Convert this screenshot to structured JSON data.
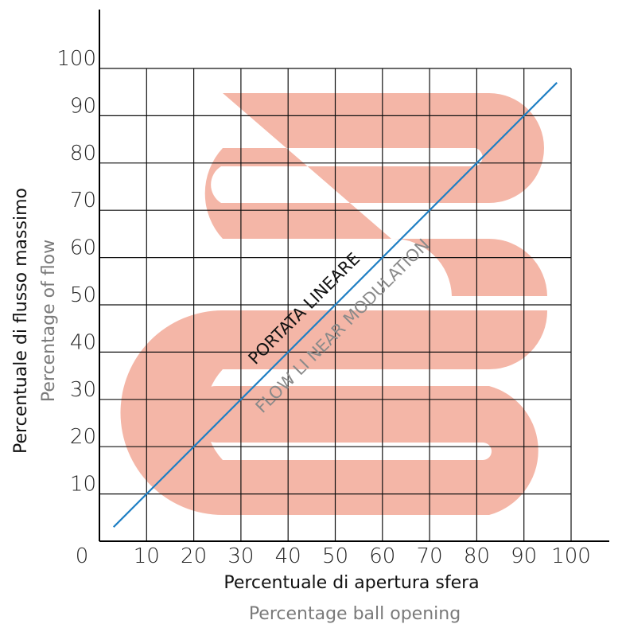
{
  "chart_data": {
    "type": "line",
    "xlabel": "Percentuale di apertura sfera",
    "xlabel_secondary": "Percentage ball opening",
    "ylabel": "Percentuale di flusso massimo",
    "ylabel_secondary": "Percentage of flow",
    "x_ticks": [
      "0",
      "10",
      "20",
      "30",
      "40",
      "50",
      "60",
      "70",
      "80",
      "90",
      "100"
    ],
    "y_ticks": [
      "10",
      "20",
      "30",
      "40",
      "50",
      "60",
      "70",
      "80",
      "90",
      "100"
    ],
    "xlim": [
      0,
      100
    ],
    "ylim": [
      0,
      100
    ],
    "grid": true,
    "series": [
      {
        "x": [
          3,
          97
        ],
        "y": [
          3,
          97
        ]
      }
    ],
    "annotations": [
      "PORTATA  LINEARE",
      "FLOW  LI NEAR  MODULATION"
    ],
    "colors": {
      "line": "#1f7fc4",
      "band": "#f4b6a7",
      "grid": "#111111"
    }
  }
}
